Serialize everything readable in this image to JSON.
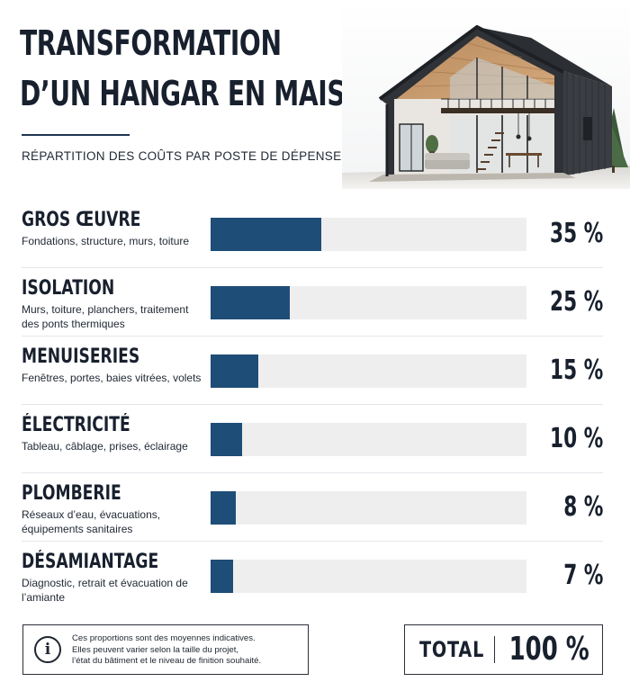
{
  "header": {
    "title_line1": "TRANSFORMATION",
    "title_line2": "D’UN HANGAR EN MAISON",
    "subtitle": "RÉPARTITION DES COÛTS PAR POSTE DE DÉPENSE"
  },
  "colors": {
    "bar_fill": "#1e4d78",
    "bar_track": "#eeeeee",
    "text_dark": "#18202e"
  },
  "chart_data": {
    "type": "bar",
    "orientation": "horizontal",
    "xlim": [
      0,
      100
    ],
    "categories": [
      "GROS ŒUVRE",
      "ISOLATION",
      "MENUISERIES",
      "ÉLECTRICITÉ",
      "PLOMBERIE",
      "DÉSAMIANTAGE"
    ],
    "values": [
      35,
      25,
      15,
      10,
      8,
      7
    ],
    "descriptions": [
      "Fondations, structure, murs, toiture",
      "Murs, toiture, planchers, traitement des ponts thermiques",
      "Fenêtres, portes, baies vitrées, volets",
      "Tableau, câblage, prises, éclairage",
      "Réseaux d’eau, évacuations, équipements sanitaires",
      "Diagnostic, retrait et évacuation de l’amiante"
    ],
    "value_labels": [
      "35 %",
      "25 %",
      "15 %",
      "10 %",
      "8 %",
      "7 %"
    ]
  },
  "note": {
    "icon": "info-icon",
    "line1": "Ces proportions sont des moyennes indicatives.",
    "line2": "Elles peuvent varier selon la taille du projet,",
    "line3": "l’état du bâtiment et le niveau de finition souhaité."
  },
  "total": {
    "label": "TOTAL",
    "value": "100 %"
  }
}
